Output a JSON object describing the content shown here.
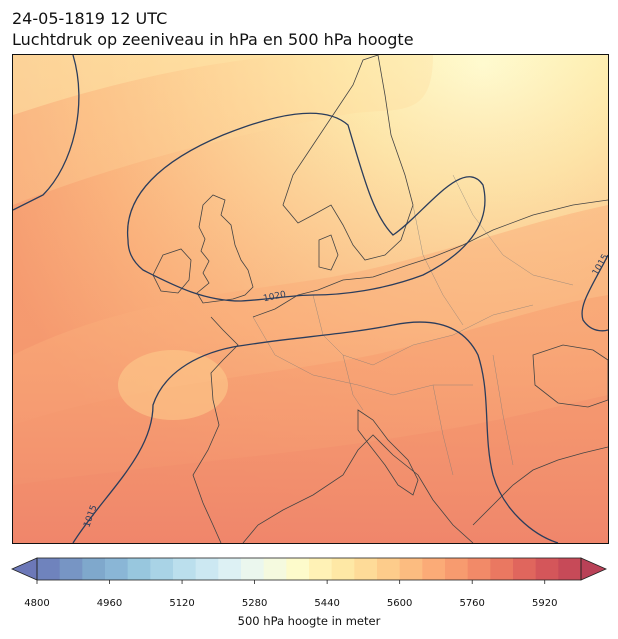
{
  "header": {
    "title_line1": "24-05-1819 12 UTC",
    "title_line2": "Luchtdruk op zeeniveau in hPa en 500 hPa hoogte"
  },
  "map": {
    "contour_labels": [
      "1020",
      "1015",
      "1015"
    ],
    "shading_palette": "RdYlBu_r (light yellow north, orange-red south)"
  },
  "colorbar": {
    "label": "500 hPa hoogte in meter",
    "min": 4800,
    "max": 6000,
    "step": 40,
    "ticks": [
      "4800",
      "4960",
      "5120",
      "5280",
      "5440",
      "5600",
      "5760",
      "5920"
    ],
    "colors": [
      "#6c78b8",
      "#6f83bd",
      "#7795c4",
      "#7fa8cc",
      "#8ab6d6",
      "#98c7de",
      "#a9d3e6",
      "#bbdfed",
      "#cce8f2",
      "#ddf1f4",
      "#ebf7ee",
      "#f5fadf",
      "#fdfbcb",
      "#fff2b6",
      "#fee8a5",
      "#fedb98",
      "#fdcc8b",
      "#fcbc80",
      "#fbab77",
      "#f79b6f",
      "#f28a68",
      "#ea7861",
      "#e0665d",
      "#d4565a",
      "#c74a58",
      "#b94157"
    ]
  }
}
